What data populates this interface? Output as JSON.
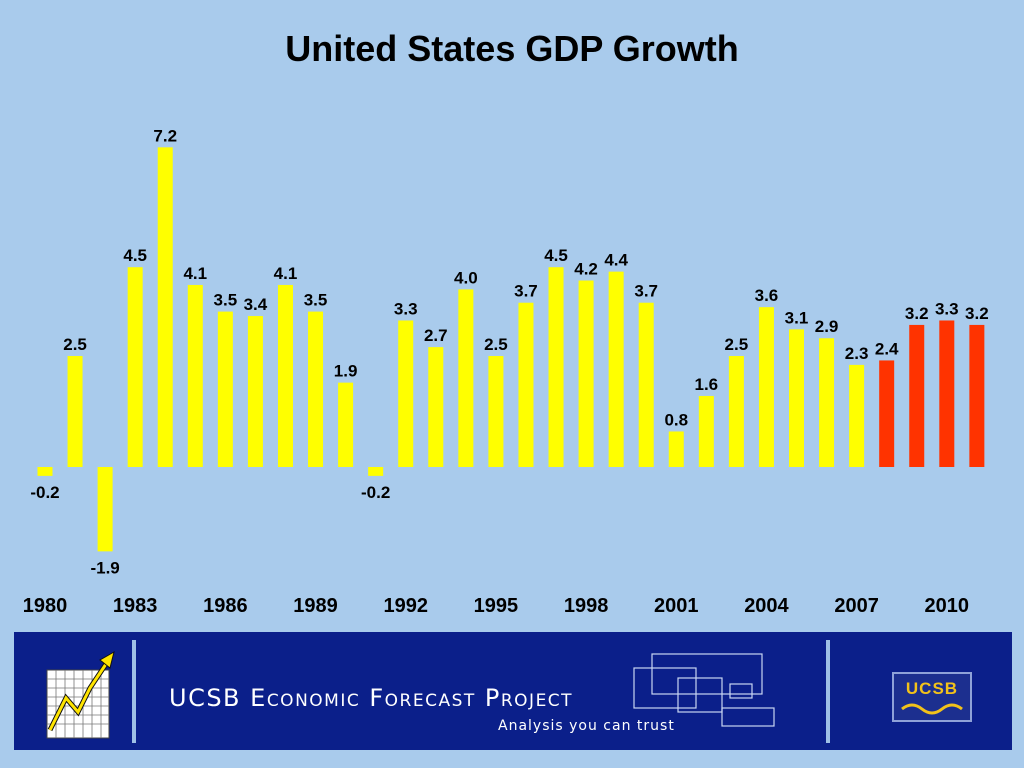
{
  "chart_data": {
    "type": "bar",
    "title": "United States GDP Growth",
    "xlabel": "",
    "ylabel": "",
    "ylim": [
      -2.5,
      7.5
    ],
    "grid": false,
    "x": [
      1980,
      1981,
      1982,
      1983,
      1984,
      1985,
      1986,
      1987,
      1988,
      1989,
      1990,
      1991,
      1992,
      1993,
      1994,
      1995,
      1996,
      1997,
      1998,
      1999,
      2000,
      2001,
      2002,
      2003,
      2004,
      2005,
      2006,
      2007,
      2008,
      2009,
      2010,
      2011,
      2012
    ],
    "values": [
      -0.2,
      2.5,
      -1.9,
      4.5,
      7.2,
      4.1,
      3.5,
      3.4,
      4.1,
      3.5,
      1.9,
      -0.2,
      3.3,
      2.7,
      4.0,
      2.5,
      3.7,
      4.5,
      4.2,
      4.4,
      3.7,
      0.8,
      1.6,
      2.5,
      3.6,
      3.1,
      2.9,
      2.3,
      2.4,
      3.2,
      3.3,
      3.2,
      null
    ],
    "value_labels": [
      "-0.2",
      "2.5",
      "-1.9",
      "4.5",
      "7.2",
      "4.1",
      "3.5",
      "3.4",
      "4.1",
      "3.5",
      "1.9",
      "-0.2",
      "3.3",
      "2.7",
      "4.0",
      "2.5",
      "3.7",
      "4.5",
      "4.2",
      "4.4",
      "3.7",
      "0.8",
      "1.6",
      "2.5",
      "3.6",
      "3.1",
      "2.9",
      "2.3",
      "2.4",
      "3.2",
      "3.3",
      "3.2",
      ""
    ],
    "tick_labels": [
      "1980",
      "1983",
      "1986",
      "1989",
      "1992",
      "1995",
      "1998",
      "2001",
      "2004",
      "2007",
      "2010"
    ],
    "series": [
      {
        "color": "#ffff00"
      },
      {
        "color": "#ff3300"
      }
    ],
    "forecast_start_year": 2008
  },
  "banner": {
    "name": "UCSB Economic Forecast Project",
    "tagline": "Analysis you can trust",
    "badge": "UCSB"
  }
}
